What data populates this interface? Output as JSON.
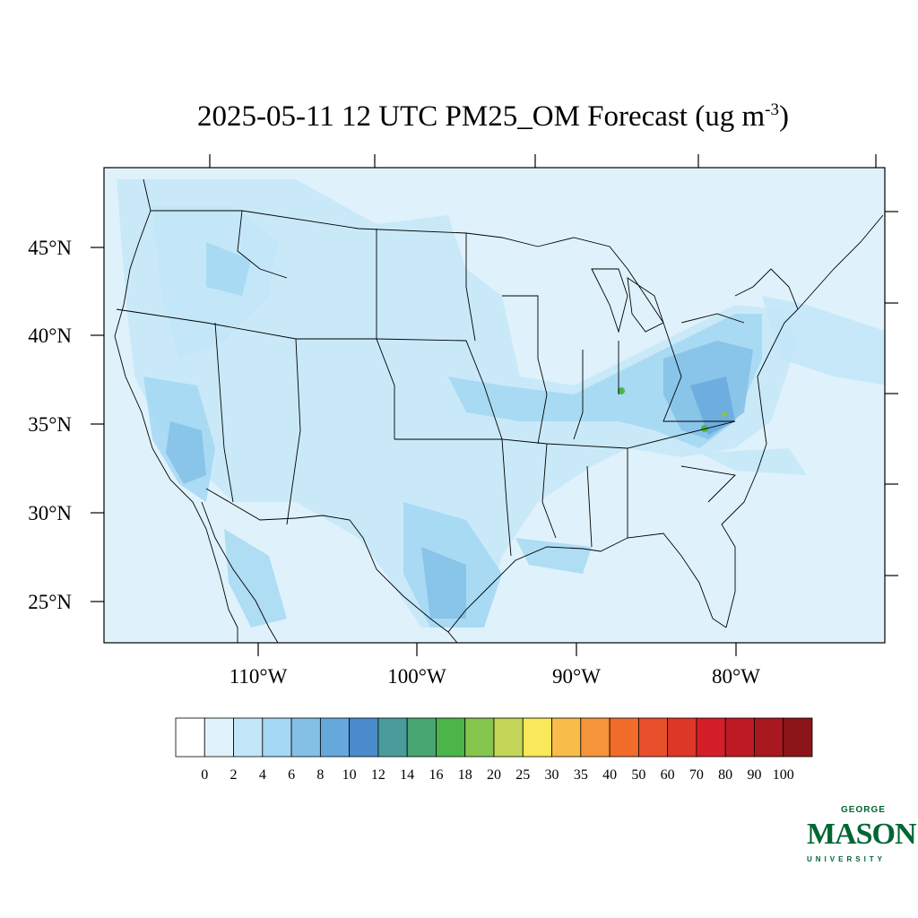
{
  "title": {
    "text": "2025-05-11 12 UTC PM25_OM Forecast (ug m",
    "sup": "-3",
    "close": ")"
  },
  "map": {
    "lat_labels": [
      "45°N",
      "40°N",
      "35°N",
      "30°N",
      "25°N"
    ],
    "lon_labels": [
      "110°W",
      "100°W",
      "90°W",
      "80°W"
    ],
    "background": "#dff2fb"
  },
  "colorbar": {
    "ticks": [
      "0",
      "2",
      "4",
      "6",
      "8",
      "10",
      "12",
      "14",
      "16",
      "18",
      "20",
      "25",
      "30",
      "35",
      "40",
      "50",
      "60",
      "70",
      "80",
      "90",
      "100"
    ],
    "colors": [
      "#ffffff",
      "#e0f3fb",
      "#c2e6f8",
      "#a3d7f3",
      "#84c0e6",
      "#67a8dc",
      "#4a8ccb",
      "#4a9c9c",
      "#48a670",
      "#4bb54a",
      "#86c54e",
      "#c3d657",
      "#f8e85a",
      "#f8bc4a",
      "#f69539",
      "#f26c2b",
      "#e8502b",
      "#dd3727",
      "#d41f2a",
      "#bd1a24",
      "#a8181f",
      "#8c1519"
    ]
  },
  "logo": {
    "line1": "GEORGE",
    "line2": "MASON",
    "line3": "UNIVERSITY",
    "color": "#006633"
  }
}
